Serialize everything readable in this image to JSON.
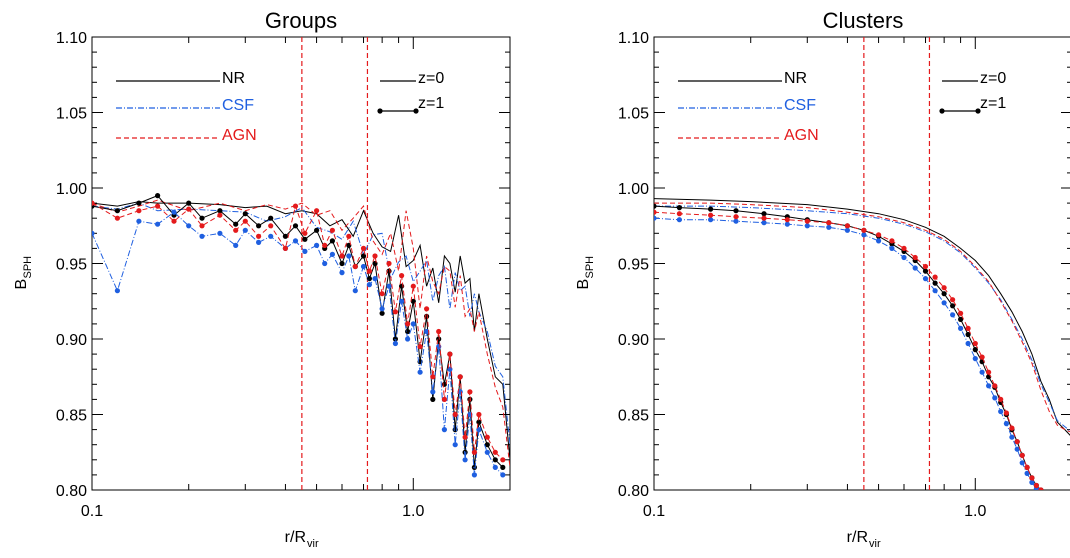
{
  "figure": {
    "xlabel_main": "r/R",
    "xlabel_sub": "vir",
    "ylabel_main": "B",
    "ylabel_sub": "SPH"
  },
  "colors": {
    "NR": "#000000",
    "CSF": "#1f5fe0",
    "AGN": "#e41a1c"
  },
  "legend": {
    "models": [
      "NR",
      "CSF",
      "AGN"
    ],
    "redshifts": [
      "z=0",
      "z=1"
    ]
  },
  "chart_data": [
    {
      "type": "line",
      "title": "Groups",
      "xscale": "log",
      "xlim": [
        0.1,
        2.0
      ],
      "ylim": [
        0.8,
        1.1
      ],
      "xticks": [
        "0.1",
        "1.0"
      ],
      "yticks": [
        "0.80",
        "0.85",
        "0.90",
        "0.95",
        "1.00",
        "1.05",
        "1.10"
      ],
      "vlines": [
        0.45,
        0.72
      ],
      "series": [
        {
          "name": "NR",
          "z": "z=0",
          "style": "solid",
          "x": [
            0.1,
            0.12,
            0.14,
            0.16,
            0.2,
            0.25,
            0.3,
            0.35,
            0.4,
            0.45,
            0.5,
            0.55,
            0.6,
            0.65,
            0.7,
            0.75,
            0.8,
            0.85,
            0.9,
            0.95,
            1.0,
            1.05,
            1.1,
            1.15,
            1.2,
            1.25,
            1.3,
            1.35,
            1.4,
            1.45,
            1.5,
            1.55,
            1.6,
            1.7,
            1.8,
            1.9,
            2.0
          ],
          "y": [
            0.99,
            0.988,
            0.991,
            0.99,
            0.99,
            0.989,
            0.987,
            0.988,
            0.983,
            0.985,
            0.983,
            0.975,
            0.979,
            0.968,
            0.985,
            0.97,
            0.961,
            0.958,
            0.982,
            0.948,
            0.952,
            0.962,
            0.935,
            0.947,
            0.924,
            0.955,
            0.95,
            0.931,
            0.955,
            0.937,
            0.94,
            0.905,
            0.93,
            0.9,
            0.875,
            0.87,
            0.82
          ]
        },
        {
          "name": "CSF",
          "z": "z=0",
          "style": "dashdot",
          "x": [
            0.1,
            0.12,
            0.14,
            0.16,
            0.2,
            0.25,
            0.3,
            0.35,
            0.4,
            0.45,
            0.5,
            0.55,
            0.6,
            0.65,
            0.7,
            0.75,
            0.8,
            0.85,
            0.9,
            0.95,
            1.0,
            1.05,
            1.1,
            1.15,
            1.2,
            1.25,
            1.3,
            1.35,
            1.4,
            1.45,
            1.5,
            1.55,
            1.6,
            1.7,
            1.8,
            1.9,
            2.0
          ],
          "y": [
            0.988,
            0.986,
            0.99,
            0.985,
            0.986,
            0.985,
            0.984,
            0.978,
            0.981,
            0.987,
            0.974,
            0.971,
            0.966,
            0.978,
            0.956,
            0.969,
            0.97,
            0.94,
            0.951,
            0.955,
            0.938,
            0.945,
            0.952,
            0.925,
            0.942,
            0.948,
            0.92,
            0.944,
            0.932,
            0.935,
            0.915,
            0.93,
            0.918,
            0.905,
            0.882,
            0.875,
            0.83
          ]
        },
        {
          "name": "AGN",
          "z": "z=0",
          "style": "dashed",
          "x": [
            0.1,
            0.12,
            0.14,
            0.16,
            0.2,
            0.25,
            0.3,
            0.35,
            0.4,
            0.45,
            0.5,
            0.55,
            0.6,
            0.65,
            0.7,
            0.75,
            0.8,
            0.85,
            0.9,
            0.95,
            1.0,
            1.05,
            1.1,
            1.15,
            1.2,
            1.25,
            1.3,
            1.35,
            1.4,
            1.45,
            1.5,
            1.55,
            1.6,
            1.7,
            1.8,
            1.9,
            2.0
          ],
          "y": [
            0.99,
            0.984,
            0.988,
            0.992,
            0.985,
            0.99,
            0.985,
            0.989,
            0.986,
            0.99,
            0.982,
            0.985,
            0.972,
            0.98,
            0.988,
            0.965,
            0.956,
            0.97,
            0.945,
            0.985,
            0.96,
            0.92,
            0.955,
            0.938,
            0.93,
            0.948,
            0.945,
            0.921,
            0.942,
            0.915,
            0.92,
            0.905,
            0.918,
            0.89,
            0.868,
            0.855,
            0.815
          ]
        },
        {
          "name": "NR",
          "z": "z=1",
          "style": "solid-dots",
          "x": [
            0.1,
            0.12,
            0.14,
            0.16,
            0.18,
            0.2,
            0.22,
            0.25,
            0.28,
            0.3,
            0.33,
            0.36,
            0.4,
            0.43,
            0.46,
            0.5,
            0.53,
            0.56,
            0.6,
            0.63,
            0.66,
            0.7,
            0.73,
            0.76,
            0.8,
            0.84,
            0.88,
            0.92,
            0.96,
            1.0,
            1.05,
            1.1,
            1.15,
            1.2,
            1.25,
            1.3,
            1.35,
            1.4,
            1.45,
            1.5,
            1.55,
            1.6,
            1.7,
            1.8,
            1.9
          ],
          "y": [
            0.988,
            0.985,
            0.99,
            0.995,
            0.982,
            0.99,
            0.98,
            0.985,
            0.976,
            0.983,
            0.975,
            0.98,
            0.968,
            0.975,
            0.966,
            0.972,
            0.96,
            0.965,
            0.95,
            0.962,
            0.948,
            0.955,
            0.94,
            0.95,
            0.917,
            0.945,
            0.9,
            0.935,
            0.905,
            0.925,
            0.885,
            0.915,
            0.86,
            0.9,
            0.87,
            0.89,
            0.84,
            0.875,
            0.825,
            0.86,
            0.815,
            0.845,
            0.83,
            0.82,
            0.815
          ]
        },
        {
          "name": "CSF",
          "z": "z=1",
          "style": "dashdot-dots",
          "x": [
            0.1,
            0.12,
            0.14,
            0.16,
            0.18,
            0.2,
            0.22,
            0.25,
            0.28,
            0.3,
            0.33,
            0.36,
            0.4,
            0.43,
            0.46,
            0.5,
            0.53,
            0.56,
            0.6,
            0.63,
            0.66,
            0.7,
            0.73,
            0.76,
            0.8,
            0.84,
            0.88,
            0.92,
            0.96,
            1.0,
            1.05,
            1.1,
            1.15,
            1.2,
            1.25,
            1.3,
            1.35,
            1.4,
            1.45,
            1.5,
            1.55,
            1.6,
            1.7,
            1.8,
            1.9
          ],
          "y": [
            0.97,
            0.932,
            0.978,
            0.976,
            0.984,
            0.975,
            0.968,
            0.97,
            0.962,
            0.972,
            0.964,
            0.968,
            0.96,
            0.965,
            0.958,
            0.962,
            0.95,
            0.956,
            0.944,
            0.955,
            0.932,
            0.948,
            0.936,
            0.94,
            0.92,
            0.935,
            0.897,
            0.925,
            0.9,
            0.91,
            0.878,
            0.905,
            0.865,
            0.895,
            0.84,
            0.88,
            0.83,
            0.865,
            0.82,
            0.85,
            0.81,
            0.84,
            0.825,
            0.815,
            0.81
          ]
        },
        {
          "name": "AGN",
          "z": "z=1",
          "style": "dashed-dots",
          "x": [
            0.1,
            0.12,
            0.14,
            0.16,
            0.18,
            0.2,
            0.22,
            0.25,
            0.28,
            0.3,
            0.33,
            0.36,
            0.4,
            0.43,
            0.46,
            0.5,
            0.53,
            0.56,
            0.6,
            0.63,
            0.66,
            0.7,
            0.73,
            0.76,
            0.8,
            0.84,
            0.88,
            0.92,
            0.96,
            1.0,
            1.05,
            1.1,
            1.15,
            1.2,
            1.25,
            1.3,
            1.35,
            1.4,
            1.45,
            1.5,
            1.55,
            1.6,
            1.7,
            1.8,
            1.9
          ],
          "y": [
            0.99,
            0.98,
            0.985,
            0.988,
            0.978,
            0.986,
            0.975,
            0.982,
            0.972,
            0.978,
            0.968,
            0.975,
            0.96,
            0.988,
            0.97,
            0.985,
            0.962,
            0.972,
            0.955,
            0.968,
            0.948,
            0.96,
            0.945,
            0.955,
            0.93,
            0.95,
            0.918,
            0.942,
            0.91,
            0.935,
            0.895,
            0.92,
            0.875,
            0.905,
            0.86,
            0.89,
            0.85,
            0.875,
            0.835,
            0.865,
            0.825,
            0.85,
            0.835,
            0.825,
            0.82
          ]
        }
      ]
    },
    {
      "type": "line",
      "title": "Clusters",
      "xscale": "log",
      "xlim": [
        0.1,
        2.0
      ],
      "ylim": [
        0.8,
        1.1
      ],
      "xticks": [
        "0.1",
        "1.0"
      ],
      "yticks": [
        "0.80",
        "0.85",
        "0.90",
        "0.95",
        "1.00",
        "1.05",
        "1.10"
      ],
      "vlines": [
        0.45,
        0.72
      ],
      "series": [
        {
          "name": "NR",
          "z": "z=0",
          "style": "solid",
          "x": [
            0.1,
            0.15,
            0.2,
            0.3,
            0.4,
            0.5,
            0.6,
            0.7,
            0.8,
            0.9,
            1.0,
            1.1,
            1.2,
            1.3,
            1.4,
            1.5,
            1.6,
            1.7,
            1.8,
            1.9,
            2.0
          ],
          "y": [
            0.993,
            0.992,
            0.991,
            0.989,
            0.986,
            0.983,
            0.979,
            0.974,
            0.968,
            0.96,
            0.952,
            0.942,
            0.93,
            0.918,
            0.905,
            0.89,
            0.872,
            0.86,
            0.845,
            0.84,
            0.835
          ]
        },
        {
          "name": "CSF",
          "z": "z=0",
          "style": "dashdot",
          "x": [
            0.1,
            0.15,
            0.2,
            0.3,
            0.4,
            0.5,
            0.6,
            0.7,
            0.8,
            0.9,
            1.0,
            1.1,
            1.2,
            1.3,
            1.4,
            1.5,
            1.6,
            1.7,
            1.8,
            1.9,
            2.0
          ],
          "y": [
            0.988,
            0.988,
            0.987,
            0.985,
            0.983,
            0.98,
            0.976,
            0.971,
            0.965,
            0.957,
            0.947,
            0.937,
            0.926,
            0.913,
            0.9,
            0.886,
            0.87,
            0.858,
            0.846,
            0.842,
            0.838
          ]
        },
        {
          "name": "AGN",
          "z": "z=0",
          "style": "dashed",
          "x": [
            0.1,
            0.15,
            0.2,
            0.3,
            0.4,
            0.5,
            0.6,
            0.7,
            0.8,
            0.9,
            1.0,
            1.1,
            1.2,
            1.3,
            1.4,
            1.5,
            1.6,
            1.7,
            1.8,
            1.9,
            2.0
          ],
          "y": [
            0.99,
            0.99,
            0.989,
            0.987,
            0.984,
            0.981,
            0.977,
            0.972,
            0.966,
            0.958,
            0.948,
            0.938,
            0.925,
            0.912,
            0.898,
            0.884,
            0.866,
            0.852,
            0.843,
            0.84,
            0.838
          ]
        },
        {
          "name": "NR",
          "z": "z=1",
          "style": "solid-dots",
          "x": [
            0.1,
            0.12,
            0.15,
            0.18,
            0.22,
            0.26,
            0.3,
            0.35,
            0.4,
            0.45,
            0.5,
            0.55,
            0.6,
            0.65,
            0.7,
            0.75,
            0.8,
            0.85,
            0.9,
            0.95,
            1.0,
            1.05,
            1.1,
            1.15,
            1.2,
            1.25,
            1.3,
            1.35,
            1.4,
            1.45,
            1.5,
            1.55,
            1.6,
            1.65
          ],
          "y": [
            0.988,
            0.987,
            0.986,
            0.985,
            0.983,
            0.981,
            0.979,
            0.977,
            0.975,
            0.972,
            0.968,
            0.963,
            0.958,
            0.952,
            0.945,
            0.937,
            0.93,
            0.922,
            0.913,
            0.903,
            0.893,
            0.885,
            0.875,
            0.868,
            0.858,
            0.85,
            0.84,
            0.832,
            0.823,
            0.815,
            0.808,
            0.803,
            0.8,
            0.798
          ]
        },
        {
          "name": "CSF",
          "z": "z=1",
          "style": "dashdot-dots",
          "x": [
            0.1,
            0.12,
            0.15,
            0.18,
            0.22,
            0.26,
            0.3,
            0.35,
            0.4,
            0.45,
            0.5,
            0.55,
            0.6,
            0.65,
            0.7,
            0.75,
            0.8,
            0.85,
            0.9,
            0.95,
            1.0,
            1.05,
            1.1,
            1.15,
            1.2,
            1.25,
            1.3,
            1.35,
            1.4,
            1.45,
            1.5,
            1.55,
            1.6,
            1.65
          ],
          "y": [
            0.98,
            0.979,
            0.979,
            0.978,
            0.977,
            0.976,
            0.975,
            0.974,
            0.972,
            0.969,
            0.965,
            0.96,
            0.954,
            0.947,
            0.94,
            0.932,
            0.924,
            0.916,
            0.907,
            0.897,
            0.887,
            0.878,
            0.869,
            0.861,
            0.852,
            0.844,
            0.835,
            0.827,
            0.818,
            0.811,
            0.805,
            0.801,
            0.799,
            0.797
          ]
        },
        {
          "name": "AGN",
          "z": "z=1",
          "style": "dashed-dots",
          "x": [
            0.1,
            0.12,
            0.15,
            0.18,
            0.22,
            0.26,
            0.3,
            0.35,
            0.4,
            0.45,
            0.5,
            0.55,
            0.6,
            0.65,
            0.7,
            0.75,
            0.8,
            0.85,
            0.9,
            0.95,
            1.0,
            1.05,
            1.1,
            1.15,
            1.2,
            1.25,
            1.3,
            1.35,
            1.4,
            1.45,
            1.5,
            1.55,
            1.6,
            1.65
          ],
          "y": [
            0.984,
            0.983,
            0.982,
            0.981,
            0.98,
            0.979,
            0.978,
            0.977,
            0.975,
            0.972,
            0.969,
            0.965,
            0.96,
            0.954,
            0.948,
            0.941,
            0.934,
            0.926,
            0.917,
            0.907,
            0.897,
            0.888,
            0.878,
            0.869,
            0.86,
            0.851,
            0.841,
            0.832,
            0.823,
            0.815,
            0.808,
            0.803,
            0.8,
            0.798
          ]
        }
      ]
    }
  ]
}
